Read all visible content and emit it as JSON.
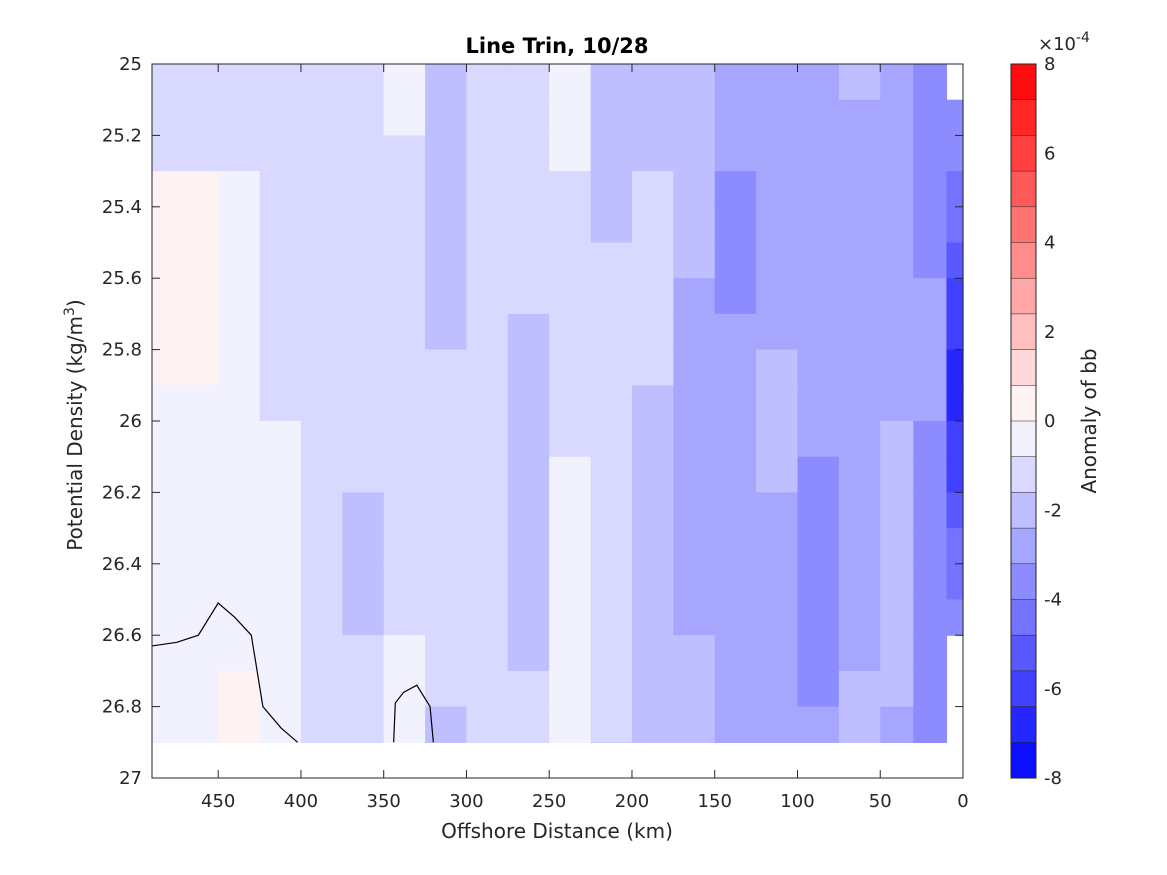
{
  "chart_data": {
    "type": "heatmap",
    "title": "Line Trin, 10/28",
    "xlabel": "Offshore Distance (km)",
    "ylabel_main": "Potential Density (kg/m",
    "ylabel_sup": "3",
    "ylabel_tail": ")",
    "xlim": [
      490,
      0
    ],
    "x_reversed": true,
    "ylim": [
      25,
      27
    ],
    "y_reversed": true,
    "x_ticks": [
      450,
      400,
      350,
      300,
      250,
      200,
      150,
      100,
      50,
      0
    ],
    "y_ticks": [
      "25",
      "25.2",
      "25.4",
      "25.6",
      "25.8",
      "26",
      "26.2",
      "26.4",
      "26.6",
      "26.8",
      "27"
    ],
    "y_tick_values": [
      25,
      25.2,
      25.4,
      25.6,
      25.8,
      26,
      26.2,
      26.4,
      26.6,
      26.8,
      27
    ],
    "colorbar": {
      "label": "Anomaly of bb",
      "exponent_base": "×10",
      "exponent_power": "-4",
      "range": [
        -8,
        8
      ],
      "ticks": [
        8,
        6,
        4,
        2,
        0,
        -2,
        -4,
        -6,
        -8
      ],
      "tick_labels": [
        "8",
        "6",
        "4",
        "2",
        "0",
        "-2",
        "-4",
        "-6",
        "-8"
      ],
      "levels": 20,
      "colormap": "blue-white-red",
      "color_min": "#0000ff",
      "color_mid": "#ffffff",
      "color_max": "#ff0000"
    },
    "x_grid": [
      490,
      450,
      425,
      400,
      375,
      350,
      325,
      300,
      275,
      250,
      225,
      200,
      175,
      150,
      125,
      100,
      75,
      50,
      30,
      10
    ],
    "y_grid": [
      25.0,
      25.1,
      25.2,
      25.3,
      25.4,
      25.5,
      25.6,
      25.7,
      25.8,
      25.9,
      26.0,
      26.1,
      26.2,
      26.3,
      26.4,
      26.5,
      26.6,
      26.7,
      26.8,
      26.9
    ],
    "column_anomalies_1e4": [
      -0.2,
      -0.2,
      -0.8,
      -1.2,
      -1.3,
      -1.0,
      -1.6,
      -1.2,
      -1.6,
      -0.7,
      -1.4,
      -1.8,
      -2.4,
      -2.9,
      -2.7,
      -3.0,
      -2.7,
      -2.5,
      -3.5,
      -7.0
    ],
    "zero_contour_1": [
      [
        490,
        26.63
      ],
      [
        475,
        26.62
      ],
      [
        462,
        26.6
      ],
      [
        450,
        26.51
      ],
      [
        440,
        26.55
      ],
      [
        430,
        26.6
      ],
      [
        423,
        26.8
      ],
      [
        412,
        26.86
      ],
      [
        402,
        26.9
      ]
    ],
    "zero_contour_2": [
      [
        344,
        26.9
      ],
      [
        343,
        26.79
      ],
      [
        338,
        26.76
      ],
      [
        330,
        26.74
      ],
      [
        322,
        26.8
      ],
      [
        320,
        26.9
      ]
    ]
  }
}
